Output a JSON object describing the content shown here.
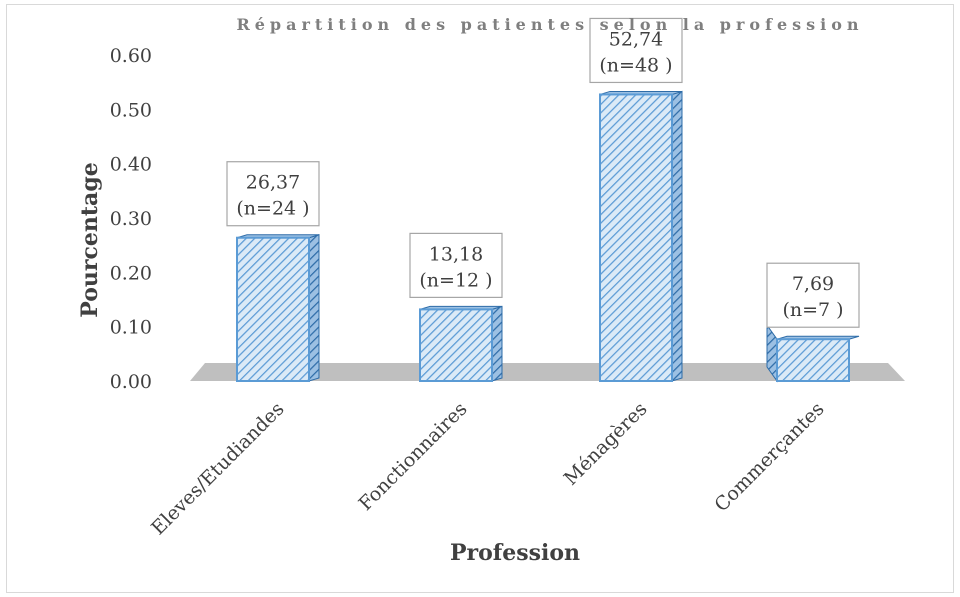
{
  "chart_data": {
    "type": "bar",
    "title": "Répartition des patientes selon la profession",
    "xlabel": "Profession",
    "ylabel": "Pourcentage",
    "ylim": [
      0,
      0.6
    ],
    "yticks": [
      "0.00",
      "0.10",
      "0.20",
      "0.30",
      "0.40",
      "0.50",
      "0.60"
    ],
    "categories": [
      "Eleves/Etudiandes",
      "Fonctionnaires",
      "Ménagères",
      "Commerçantes"
    ],
    "values": [
      0.2637,
      0.1318,
      0.5274,
      0.0769
    ],
    "data_labels": [
      {
        "pct": "26,37",
        "n": "(n=24 )"
      },
      {
        "pct": "13,18",
        "n": "(n=12 )"
      },
      {
        "pct": "52,74",
        "n": "(n=48 )"
      },
      {
        "pct": "7,69",
        "n": "(n=7 )"
      }
    ],
    "grid": false,
    "legend": "none",
    "colors": {
      "bar_fill": "#dbeaf7",
      "bar_hatch": "#5b9bd5",
      "bar_border": "#5b9bd5",
      "floor": "#bfbfbf",
      "text": "#404040"
    }
  }
}
